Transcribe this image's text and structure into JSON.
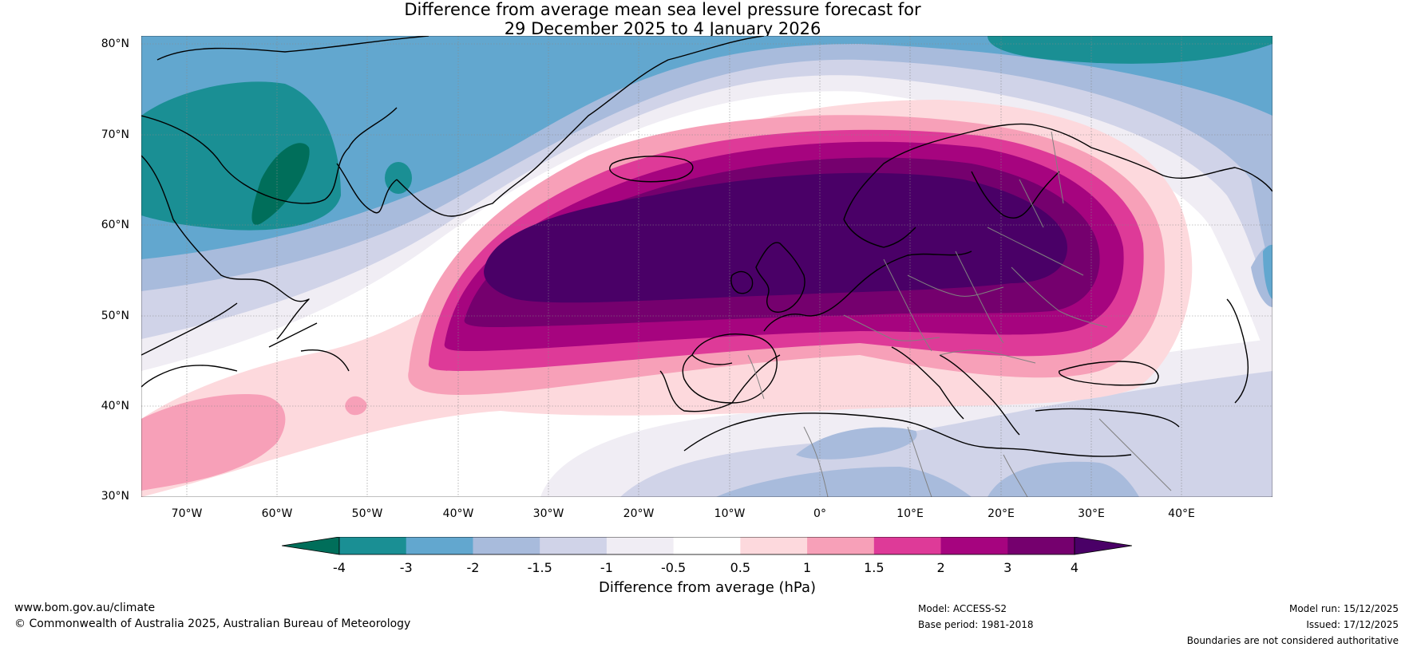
{
  "title_line1": "Difference from average mean sea level pressure forecast for",
  "title_line2": "29 December 2025 to 4 January 2026",
  "lat_ticks": [
    "80°N",
    "70°N",
    "60°N",
    "50°N",
    "40°N",
    "30°N"
  ],
  "lon_ticks": [
    "70°W",
    "60°W",
    "50°W",
    "40°W",
    "30°W",
    "20°W",
    "10°W",
    "0°",
    "10°E",
    "20°E",
    "30°E",
    "40°E"
  ],
  "colorbar": {
    "labels": [
      "-4",
      "-3",
      "-2",
      "-1.5",
      "-1",
      "-0.5",
      "0.5",
      "1",
      "1.5",
      "2",
      "3",
      "4"
    ],
    "colors": [
      "#006e5a",
      "#1a8f94",
      "#62a7cf",
      "#a8bbdc",
      "#d0d3e8",
      "#f0edf4",
      "#ffffff",
      "#fdd9dd",
      "#f7a0b8",
      "#de3a98",
      "#a6047f",
      "#75006e",
      "#4a0067"
    ],
    "title": "Difference from average (hPa)"
  },
  "footer": {
    "website": "www.bom.gov.au/climate",
    "copyright": "© Commonwealth of Australia 2025, Australian Bureau of Meteorology",
    "model": "Model: ACCESS-S2",
    "base_period": "Base period: 1981-2018",
    "model_run": "Model run: 15/12/2025",
    "issued": "Issued: 17/12/2025",
    "disclaimer": "Boundaries are not considered authoritative"
  }
}
